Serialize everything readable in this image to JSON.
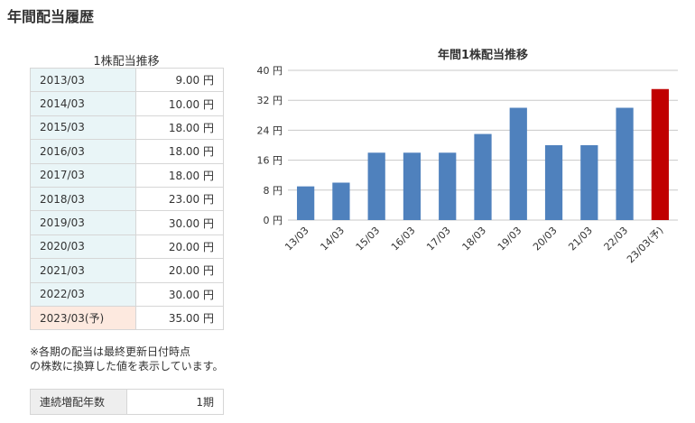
{
  "page": {
    "title": "年間配当履歴"
  },
  "table": {
    "caption": "1株配当推移",
    "rows": [
      {
        "period": "2013/03",
        "amount": "9.00 円"
      },
      {
        "period": "2014/03",
        "amount": "10.00 円"
      },
      {
        "period": "2015/03",
        "amount": "18.00 円"
      },
      {
        "period": "2016/03",
        "amount": "18.00 円"
      },
      {
        "period": "2017/03",
        "amount": "18.00 円"
      },
      {
        "period": "2018/03",
        "amount": "23.00 円"
      },
      {
        "period": "2019/03",
        "amount": "30.00 円"
      },
      {
        "period": "2020/03",
        "amount": "20.00 円"
      },
      {
        "period": "2021/03",
        "amount": "20.00 円"
      },
      {
        "period": "2022/03",
        "amount": "30.00 円"
      },
      {
        "period": "2023/03(予)",
        "amount": "35.00 円",
        "forecast": true
      }
    ]
  },
  "note": {
    "line1": "※各期の配当は最終更新日付時点",
    "line2": "の株数に換算した値を表示しています。"
  },
  "streak": {
    "label": "連続増配年数",
    "value": "1期"
  },
  "colors": {
    "bar": "#4f81bd",
    "forecast_bar": "#c00000",
    "row_bg": "#e9f5f7",
    "forecast_row_bg": "#fde9df"
  },
  "chart_data": {
    "type": "bar",
    "title": "年間1株配当推移",
    "categories": [
      "13/03",
      "14/03",
      "15/03",
      "16/03",
      "17/03",
      "18/03",
      "19/03",
      "20/03",
      "21/03",
      "22/03",
      "23/03(予)"
    ],
    "values": [
      9,
      10,
      18,
      18,
      18,
      23,
      30,
      20,
      20,
      30,
      35
    ],
    "forecast_index": 10,
    "ylim": [
      0,
      40
    ],
    "yticks": [
      0,
      8,
      16,
      24,
      32,
      40
    ],
    "ytick_labels": [
      "0 円",
      "8 円",
      "16 円",
      "24 円",
      "32 円",
      "40 円"
    ],
    "grid": true,
    "legend": "none"
  }
}
